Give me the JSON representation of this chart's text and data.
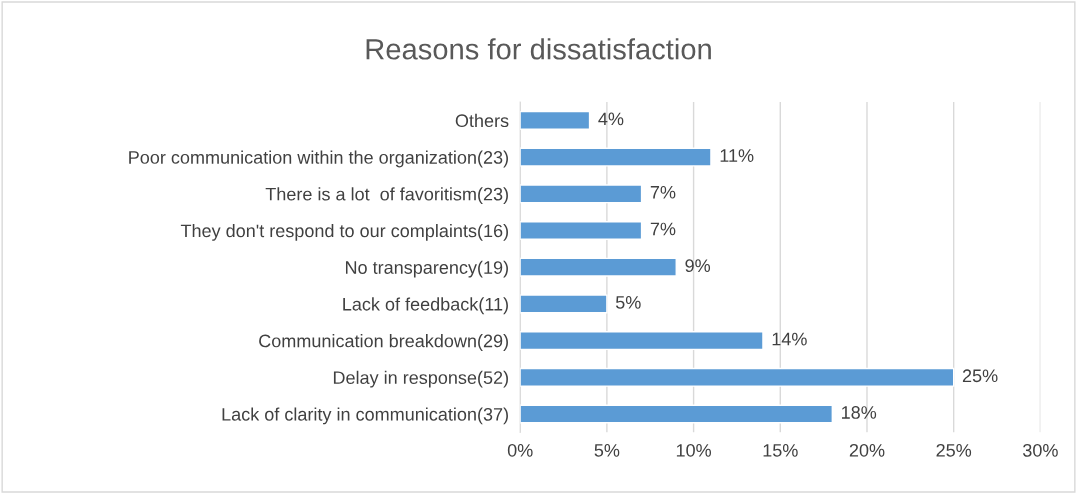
{
  "chart_data": {
    "type": "bar",
    "orientation": "horizontal",
    "title": "Reasons for dissatisfaction",
    "categories": [
      "Others",
      "Poor communication within the organization(23)",
      "There is a lot  of favoritism(23)",
      "They don't respond to our complaints(16)",
      "No transparency(19)",
      "Lack of feedback(11)",
      "Communication breakdown(29)",
      "Delay in response(52)",
      "Lack of clarity in communication(37)"
    ],
    "values": [
      4,
      11,
      7,
      7,
      9,
      5,
      14,
      25,
      18
    ],
    "value_labels": [
      "4%",
      "11%",
      "7%",
      "7%",
      "9%",
      "5%",
      "14%",
      "25%",
      "18%"
    ],
    "color": "#5b9bd5",
    "xlim": [
      0,
      30
    ],
    "xticks": [
      {
        "value": 0,
        "label": "0%"
      },
      {
        "value": 5,
        "label": "5%"
      },
      {
        "value": 10,
        "label": "10%"
      },
      {
        "value": 15,
        "label": "15%"
      },
      {
        "value": 20,
        "label": "20%"
      },
      {
        "value": 25,
        "label": "25%"
      },
      {
        "value": 30,
        "label": "30%"
      }
    ],
    "grid": "x",
    "legend": false
  }
}
